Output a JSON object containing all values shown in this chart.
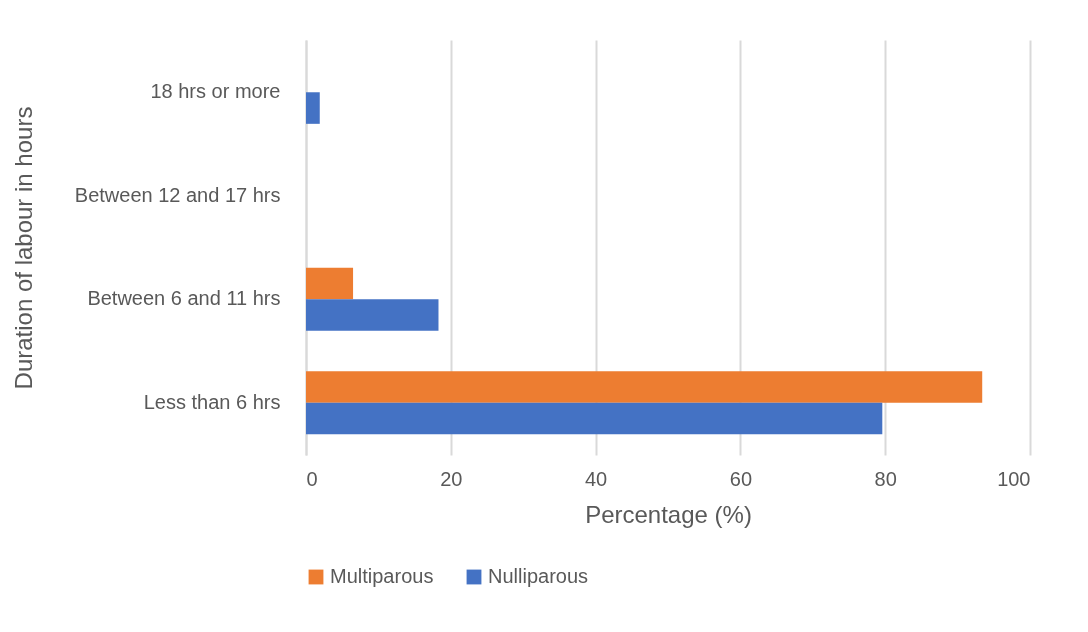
{
  "chart_data": {
    "type": "bar",
    "orientation": "horizontal",
    "xlabel": "Percentage (%)",
    "ylabel": "Duration of labour in hours",
    "categories": [
      "18 hrs or more",
      "Between 12 and 17 hrs",
      "Between 6 and 11 hrs",
      "Less than 6 hrs"
    ],
    "series": [
      {
        "name": "Multiparous",
        "color": "#ed7d31",
        "values": [
          0,
          0,
          6.5,
          93.4
        ]
      },
      {
        "name": "Nulliparous",
        "color": "#4472c4",
        "values": [
          1.9,
          0,
          18.3,
          79.6
        ]
      }
    ],
    "xlim": [
      0,
      100
    ],
    "xticks": [
      0,
      20,
      40,
      60,
      80,
      100
    ],
    "grid": "x",
    "legend": "bottom"
  }
}
